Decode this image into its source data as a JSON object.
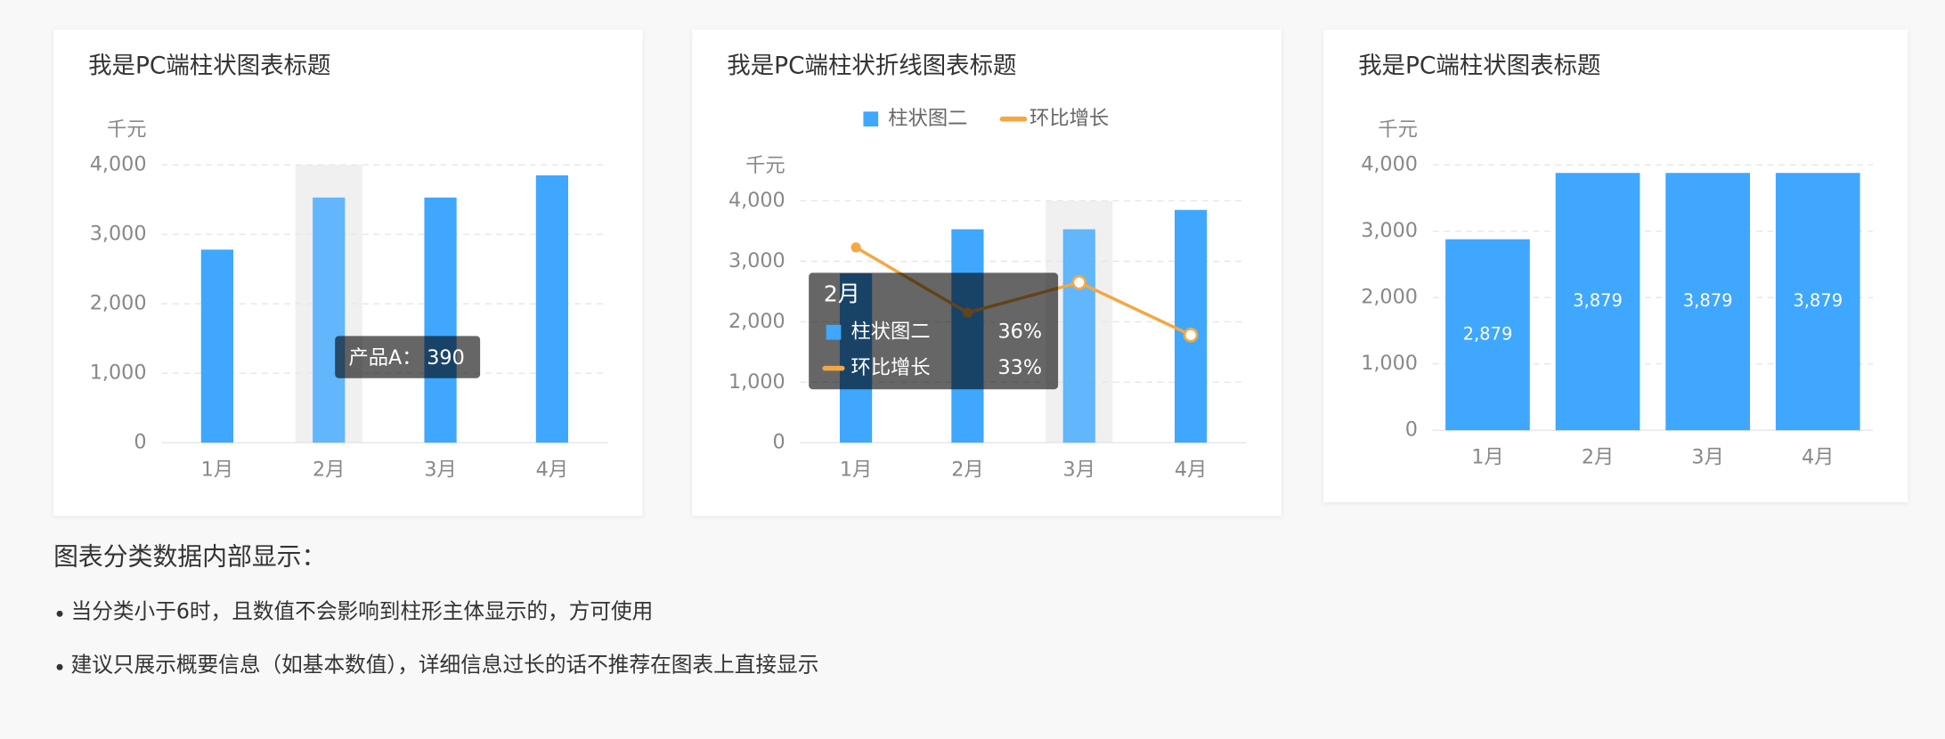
{
  "chart_data": [
    {
      "type": "bar",
      "title": "我是PC端柱状图表标题",
      "y_label": "千元",
      "categories": [
        "1月",
        "2月",
        "3月",
        "4月"
      ],
      "values": [
        2780,
        3530,
        3530,
        3850
      ],
      "color": "#3fa7fe",
      "ylim": [
        0,
        4000
      ],
      "yticks": [
        0,
        {
          "value": 1000,
          "label": "1,000"
        },
        {
          "value": 2000,
          "label": "2,000"
        },
        {
          "value": 3000,
          "label": "3,000"
        },
        {
          "value": 4000,
          "label": "4,000"
        }
      ],
      "grid": true,
      "highlight_index": 1,
      "tooltip": {
        "name": "产品A：",
        "value": 390
      }
    },
    {
      "type": "combo",
      "title": "我是PC端柱状折线图表标题",
      "y_label": "千元",
      "categories": [
        "1月",
        "2月",
        "3月",
        "4月"
      ],
      "series": [
        {
          "name": "柱状图二",
          "type": "bar",
          "color": "#3fa7fe",
          "values": [
            2800,
            3530,
            3530,
            3850
          ]
        },
        {
          "name": "环比增长",
          "type": "line",
          "color": "#f5a742",
          "values": [
            3230,
            2150,
            2650,
            1780
          ]
        }
      ],
      "ylim": [
        0,
        4000
      ],
      "yticks": [
        0,
        {
          "value": 1000,
          "label": "1,000"
        },
        {
          "value": 2000,
          "label": "2,000"
        },
        {
          "value": 3000,
          "label": "3,000"
        },
        {
          "value": 4000,
          "label": "4,000"
        }
      ],
      "grid": true,
      "legend": "top",
      "highlight_index": 2,
      "tooltip": {
        "title": "2月",
        "rows": [
          {
            "name": "柱状图二",
            "value": 36,
            "value_label": "36%"
          },
          {
            "name": "环比增长",
            "value": 33,
            "value_label": "33%"
          }
        ]
      }
    },
    {
      "type": "bar",
      "title": "我是PC端柱状图表标题",
      "y_label": "千元",
      "categories": [
        "1月",
        "2月",
        "3月",
        "4月"
      ],
      "values": [
        2879,
        3879,
        3879,
        3879
      ],
      "value_labels": [
        "2,879",
        "3,879",
        "3,879",
        "3,879"
      ],
      "color": "#3fa7fe",
      "ylim": [
        0,
        4000
      ],
      "yticks": [
        0,
        {
          "value": 1000,
          "label": "1,000"
        },
        {
          "value": 2000,
          "label": "2,000"
        },
        {
          "value": 3000,
          "label": "3,000"
        },
        {
          "value": 4000,
          "label": "4,000"
        }
      ],
      "grid": true
    }
  ],
  "notes": {
    "heading": "图表分类数据内部显示：",
    "bullets": [
      "当分类小于6时，且数值不会影响到柱形主体显示的，方可使用",
      "建议只展示概要信息（如基本数值），详细信息过长的话不推荐在图表上直接显示"
    ]
  }
}
